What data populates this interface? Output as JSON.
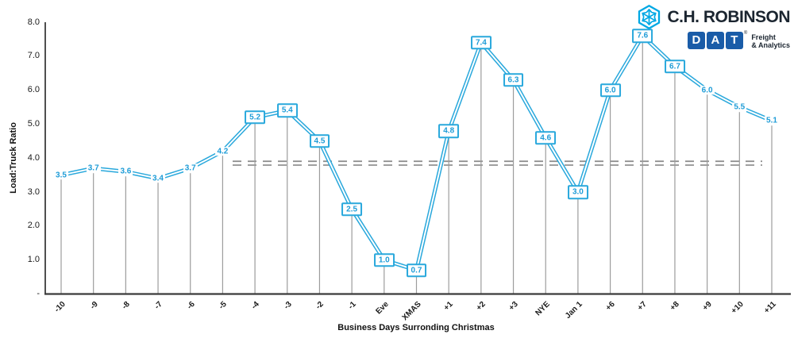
{
  "logos": {
    "chr_text": "C.H. ROBINSON",
    "dat_letters": [
      "D",
      "A",
      "T"
    ],
    "dat_reg_mark": "®",
    "dat_tagline_line1": "Freight",
    "dat_tagline_line2": "& Analytics"
  },
  "colors": {
    "line_blue": "#29A8DC",
    "label_blue": "#1E9CD7",
    "drop_line_gray": "#9C9C9C",
    "dashed_gray": "#8A8A8A",
    "axis_dark": "#3B3B3B",
    "dat_blue": "#1A5CA8",
    "chr_navy": "#1B2530",
    "chr_icon_blue": "#00A8E4"
  },
  "chart_data": {
    "type": "line",
    "title": "",
    "xlabel": "Business Days Surronding Christmas",
    "ylabel": "Load:Truck Ratio",
    "categories": [
      "-10",
      "-9",
      "-8",
      "-7",
      "-6",
      "-5",
      "-4",
      "-3",
      "-2",
      "-1",
      "Eve",
      "XMAS",
      "+1",
      "+2",
      "+3",
      "NYE",
      "Jan 1",
      "+6",
      "+7",
      "+8",
      "+9",
      "+10",
      "+11"
    ],
    "values": [
      3.5,
      3.7,
      3.6,
      3.4,
      3.7,
      4.2,
      5.2,
      5.4,
      4.5,
      2.5,
      1.0,
      0.7,
      4.8,
      7.4,
      6.3,
      4.6,
      3.0,
      6.0,
      7.6,
      6.7,
      6.0,
      5.5,
      5.1
    ],
    "label_styles": [
      "plain",
      "plain",
      "plain",
      "plain",
      "plain",
      "plain",
      "box",
      "box",
      "box",
      "box",
      "box",
      "box",
      "box",
      "box",
      "box",
      "box",
      "box",
      "box",
      "box",
      "box",
      "plain",
      "plain",
      "plain"
    ],
    "y_ticks": [
      {
        "label": "8.0",
        "value": 8
      },
      {
        "label": "7.0",
        "value": 7
      },
      {
        "label": "6.0",
        "value": 6
      },
      {
        "label": "5.0",
        "value": 5
      },
      {
        "label": "4.0",
        "value": 4
      },
      {
        "label": "3.0",
        "value": 3
      },
      {
        "label": "2.0",
        "value": 2
      },
      {
        "label": "1.0",
        "value": 1
      },
      {
        "label": "-",
        "value": 0
      }
    ],
    "ylim": [
      0,
      8
    ],
    "reference_line": {
      "value": 3.85,
      "style": "double-dashed"
    },
    "grid": "off",
    "legend": "none",
    "line_style": "double-stroke",
    "drop_lines": "on"
  }
}
